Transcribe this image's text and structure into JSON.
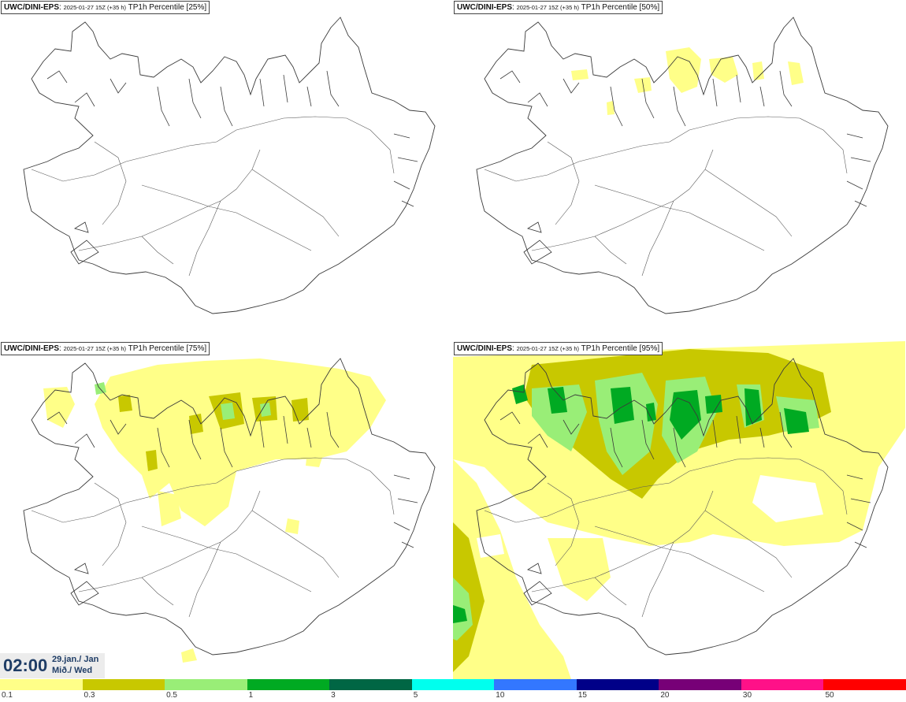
{
  "panels": [
    {
      "model": "UWC/DINI-EPS",
      "run": "2025-01-27 15Z (+35 h)",
      "field": "TP1h Percentile",
      "percentile": "[25%]"
    },
    {
      "model": "UWC/DINI-EPS",
      "run": "2025-01-27 15Z (+35 h)",
      "field": "TP1h Percentile",
      "percentile": "[50%]"
    },
    {
      "model": "UWC/DINI-EPS",
      "run": "2025-01-27 15Z (+35 h)",
      "field": "TP1h Percentile",
      "percentile": "[75%]"
    },
    {
      "model": "UWC/DINI-EPS",
      "run": "2025-01-27 15Z (+35 h)",
      "field": "TP1h Percentile",
      "percentile": "[95%]"
    }
  ],
  "valid_time": {
    "time": "02:00",
    "date_line1": "29.jan./ Jan",
    "date_line2": "Mið./ Wed"
  },
  "legend": {
    "colors": [
      "#ffff88",
      "#c8c800",
      "#99ee77",
      "#00aa22",
      "#006644",
      "#00ffee",
      "#3377ff",
      "#000088",
      "#770077",
      "#ff1188",
      "#ff0000"
    ],
    "ticks": [
      "0.1",
      "0.3",
      "0.5",
      "1",
      "3",
      "5",
      "10",
      "15",
      "20",
      "30",
      "50"
    ]
  }
}
